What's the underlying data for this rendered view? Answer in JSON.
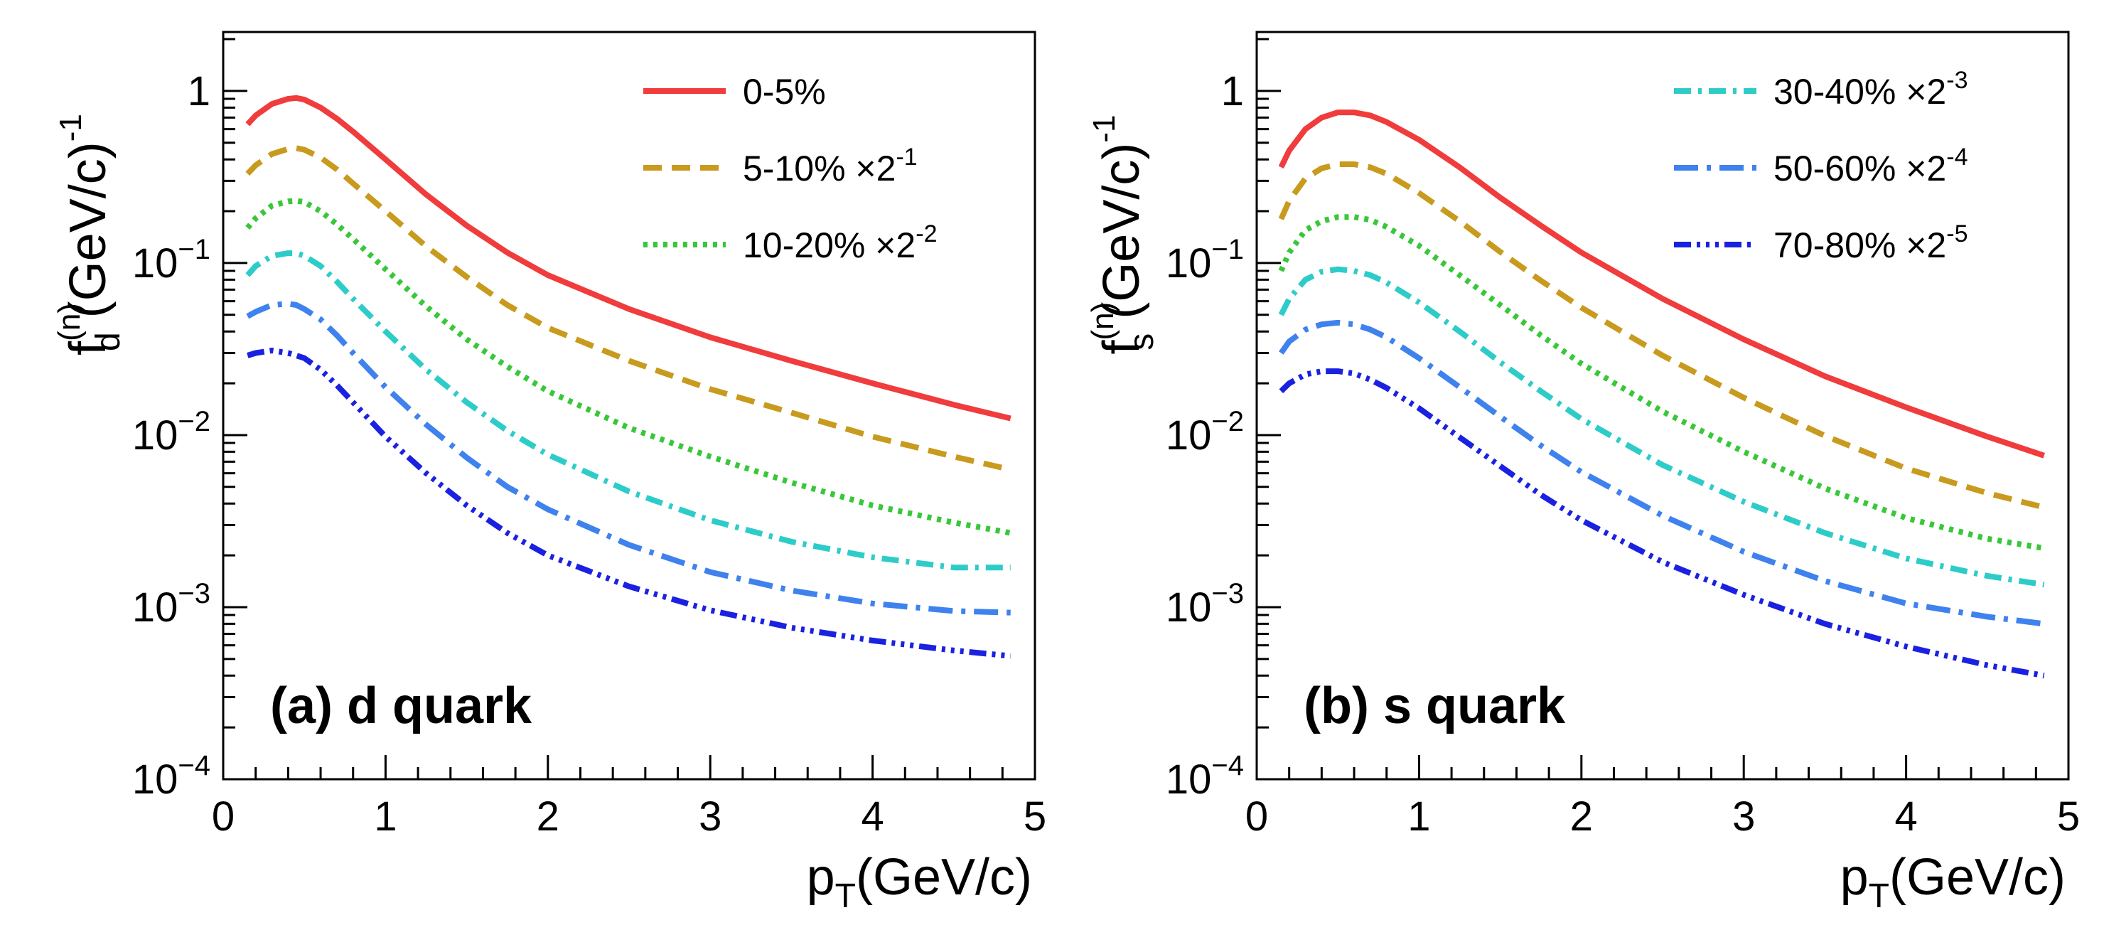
{
  "chart_data": [
    {
      "type": "line",
      "panel_label": "(a) d quark",
      "xlabel": {
        "main": "p",
        "sub": "T",
        "rest": "(GeV/c)"
      },
      "ylabel": {
        "main": "f",
        "sup": "(n)",
        "sub": "d",
        "rest": " (GeV/c)",
        "rest_sup": "-1"
      },
      "xlim": [
        0,
        5
      ],
      "ylim": [
        0.0001,
        2.2
      ],
      "yscale": "log",
      "grid": false,
      "x_ticks": [
        "0",
        "1",
        "2",
        "3",
        "4",
        "5"
      ],
      "y_ticks": [
        {
          "value": 1,
          "base": "1",
          "exp": ""
        },
        {
          "value": 0.1,
          "base": "10",
          "exp": "−1"
        },
        {
          "value": 0.01,
          "base": "10",
          "exp": "−2"
        },
        {
          "value": 0.001,
          "base": "10",
          "exp": "−3"
        },
        {
          "value": 0.0001,
          "base": "10",
          "exp": "−4"
        }
      ],
      "legend_position": "top-right",
      "x": [
        0.15,
        0.2,
        0.3,
        0.4,
        0.45,
        0.5,
        0.6,
        0.7,
        0.8,
        1.0,
        1.25,
        1.5,
        1.75,
        2.0,
        2.5,
        3.0,
        3.5,
        4.0,
        4.5,
        4.85
      ],
      "series": [
        {
          "name": "0-5%",
          "scale_text": "",
          "legend": true,
          "color": "#f03c3c",
          "dash": "",
          "values": [
            0.64,
            0.72,
            0.84,
            0.9,
            0.91,
            0.89,
            0.8,
            0.69,
            0.58,
            0.4,
            0.25,
            0.165,
            0.115,
            0.085,
            0.054,
            0.037,
            0.027,
            0.02,
            0.015,
            0.0125
          ]
        },
        {
          "name": "5-10%",
          "scale_text": " ×2",
          "scale_exp": "-1",
          "legend": true,
          "color": "#c89a1e",
          "dash": "26,14",
          "values": [
            0.33,
            0.37,
            0.43,
            0.46,
            0.465,
            0.455,
            0.41,
            0.35,
            0.29,
            0.2,
            0.125,
            0.083,
            0.057,
            0.042,
            0.027,
            0.0185,
            0.0135,
            0.0098,
            0.0075,
            0.0063
          ]
        },
        {
          "name": "10-20%",
          "scale_text": " ×2",
          "scale_exp": "-2",
          "legend": true,
          "color": "#39c73a",
          "dash": "6,8",
          "values": [
            0.16,
            0.182,
            0.215,
            0.228,
            0.23,
            0.226,
            0.2,
            0.168,
            0.138,
            0.092,
            0.056,
            0.036,
            0.025,
            0.018,
            0.011,
            0.0075,
            0.0053,
            0.0039,
            0.0031,
            0.0027
          ]
        },
        {
          "name": "30-40%",
          "scale_text": " ×2",
          "scale_exp": "-3",
          "legend": false,
          "color": "#2dccc8",
          "dash": "24,10,5,10",
          "values": [
            0.085,
            0.096,
            0.11,
            0.114,
            0.114,
            0.11,
            0.096,
            0.078,
            0.062,
            0.04,
            0.024,
            0.0155,
            0.0106,
            0.0077,
            0.0047,
            0.0032,
            0.0024,
            0.00195,
            0.0017,
            0.0017
          ]
        },
        {
          "name": "50-60%",
          "scale_text": " ×2",
          "scale_exp": "-4",
          "legend": false,
          "color": "#3f82ee",
          "dash": "34,12,6,12",
          "values": [
            0.049,
            0.052,
            0.057,
            0.058,
            0.057,
            0.054,
            0.047,
            0.038,
            0.03,
            0.019,
            0.0115,
            0.0074,
            0.005,
            0.0037,
            0.0023,
            0.0016,
            0.00125,
            0.00105,
            0.00095,
            0.00093
          ]
        },
        {
          "name": "70-80%",
          "scale_text": " ×2",
          "scale_exp": "-5",
          "legend": false,
          "color": "#1a21e0",
          "dash": "24,8,5,8,5,8,5,8",
          "values": [
            0.029,
            0.03,
            0.031,
            0.03,
            0.029,
            0.028,
            0.024,
            0.0195,
            0.0155,
            0.0098,
            0.006,
            0.0039,
            0.0027,
            0.002,
            0.00132,
            0.00096,
            0.00076,
            0.00064,
            0.00056,
            0.00052
          ]
        }
      ]
    },
    {
      "type": "line",
      "panel_label": "(b) s quark",
      "xlabel": {
        "main": "p",
        "sub": "T",
        "rest": "(GeV/c)"
      },
      "ylabel": {
        "main": "f",
        "sup": "(n)",
        "sub": "s",
        "rest": " (GeV/c)",
        "rest_sup": "-1"
      },
      "xlim": [
        0,
        5
      ],
      "ylim": [
        0.0001,
        2.2
      ],
      "yscale": "log",
      "grid": false,
      "x_ticks": [
        "0",
        "1",
        "2",
        "3",
        "4",
        "5"
      ],
      "y_ticks": [
        {
          "value": 1,
          "base": "1",
          "exp": ""
        },
        {
          "value": 0.1,
          "base": "10",
          "exp": "−1"
        },
        {
          "value": 0.01,
          "base": "10",
          "exp": "−2"
        },
        {
          "value": 0.001,
          "base": "10",
          "exp": "−3"
        },
        {
          "value": 0.0001,
          "base": "10",
          "exp": "−4"
        }
      ],
      "legend_position": "top-right",
      "x": [
        0.15,
        0.2,
        0.3,
        0.4,
        0.5,
        0.6,
        0.7,
        0.8,
        1.0,
        1.25,
        1.5,
        1.75,
        2.0,
        2.5,
        3.0,
        3.5,
        4.0,
        4.5,
        4.85
      ],
      "series": [
        {
          "name": "0-5%",
          "scale_text": "",
          "legend": false,
          "color": "#f03c3c",
          "dash": "",
          "values": [
            0.36,
            0.45,
            0.6,
            0.7,
            0.75,
            0.75,
            0.72,
            0.66,
            0.52,
            0.36,
            0.24,
            0.165,
            0.115,
            0.062,
            0.036,
            0.022,
            0.0145,
            0.0098,
            0.0076
          ]
        },
        {
          "name": "5-10%",
          "scale_text": " ×2",
          "scale_exp": "-1",
          "legend": false,
          "color": "#c89a1e",
          "dash": "26,14",
          "values": [
            0.18,
            0.23,
            0.31,
            0.355,
            0.375,
            0.375,
            0.36,
            0.33,
            0.255,
            0.175,
            0.116,
            0.079,
            0.055,
            0.029,
            0.0165,
            0.0099,
            0.0064,
            0.0046,
            0.0038
          ]
        },
        {
          "name": "10-20%",
          "scale_text": " ×2",
          "scale_exp": "-2",
          "legend": false,
          "color": "#39c73a",
          "dash": "6,8",
          "values": [
            0.09,
            0.115,
            0.155,
            0.175,
            0.185,
            0.185,
            0.178,
            0.162,
            0.126,
            0.085,
            0.057,
            0.038,
            0.026,
            0.0137,
            0.008,
            0.0049,
            0.0033,
            0.0025,
            0.0022
          ]
        },
        {
          "name": "30-40%",
          "scale_text": " ×2",
          "scale_exp": "-3",
          "legend": true,
          "color": "#2dccc8",
          "dash": "24,10,5,10",
          "values": [
            0.05,
            0.062,
            0.08,
            0.089,
            0.092,
            0.09,
            0.085,
            0.077,
            0.059,
            0.04,
            0.0265,
            0.018,
            0.0124,
            0.0067,
            0.0041,
            0.0027,
            0.00192,
            0.00152,
            0.00135
          ]
        },
        {
          "name": "50-60%",
          "scale_text": " ×2",
          "scale_exp": "-4",
          "legend": true,
          "color": "#3f82ee",
          "dash": "34,12,6,12",
          "values": [
            0.03,
            0.035,
            0.041,
            0.044,
            0.045,
            0.044,
            0.041,
            0.037,
            0.028,
            0.019,
            0.0128,
            0.0087,
            0.0061,
            0.0034,
            0.0021,
            0.00142,
            0.00105,
            0.00088,
            0.0008
          ]
        },
        {
          "name": "70-80%",
          "scale_text": " ×2",
          "scale_exp": "-5",
          "legend": true,
          "color": "#1a21e0",
          "dash": "24,8,5,8,5,8,5,8",
          "values": [
            0.018,
            0.02,
            0.0225,
            0.0235,
            0.0235,
            0.0228,
            0.021,
            0.0188,
            0.0143,
            0.0097,
            0.0066,
            0.0045,
            0.0032,
            0.00183,
            0.00118,
            0.0008,
            0.00059,
            0.00046,
            0.0004
          ]
        }
      ]
    }
  ]
}
